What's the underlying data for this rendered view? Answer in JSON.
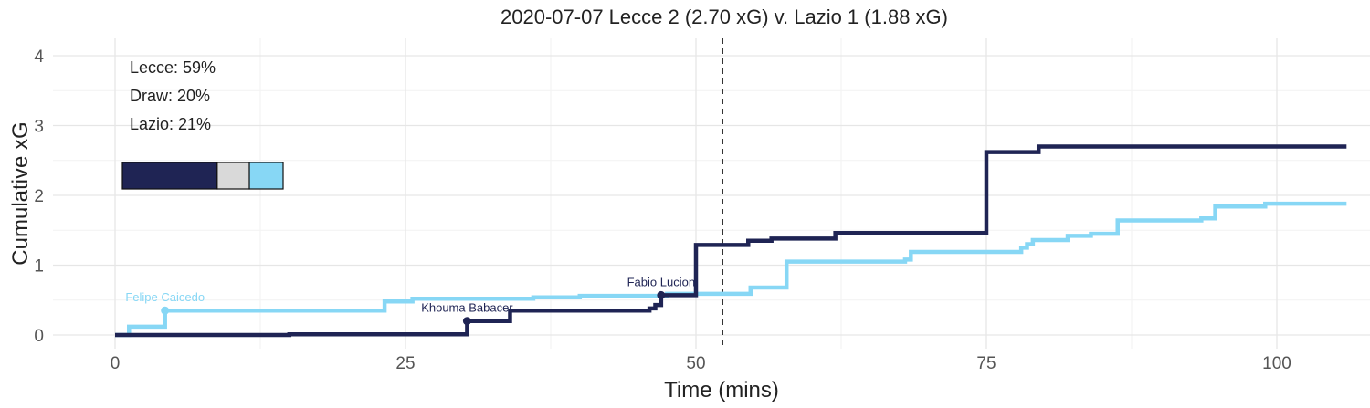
{
  "chart_data": {
    "type": "line",
    "title": "2020-07-07 Lecce 2 (2.70 xG) v. Lazio 1 (1.88 xG)",
    "xlabel": "Time (mins)",
    "ylabel": "Cumulative xG",
    "xlim": [
      -5,
      107
    ],
    "ylim": [
      -0.1,
      4.1
    ],
    "xticks": [
      0,
      25,
      50,
      75,
      100
    ],
    "yticks": [
      0,
      1,
      2,
      3,
      4
    ],
    "grid": true,
    "halftime_marker": 52.3,
    "series": [
      {
        "name": "Lecce",
        "color": "#1f2454",
        "x": [
          0,
          15,
          30.3,
          34,
          46,
          46.5,
          47,
          50,
          54.5,
          56.5,
          62,
          75,
          79.5,
          106
        ],
        "y": [
          0,
          0.01,
          0.2,
          0.35,
          0.38,
          0.43,
          0.57,
          1.29,
          1.35,
          1.38,
          1.46,
          2.62,
          2.7,
          2.7
        ]
      },
      {
        "name": "Lazio",
        "color": "#87d7f5",
        "x": [
          0,
          1.2,
          4.3,
          23.2,
          25.6,
          36,
          40,
          47.5,
          54.7,
          57.8,
          68,
          68.5,
          78,
          78.5,
          79,
          82,
          84,
          86.3,
          93.5,
          94.7,
          99,
          106
        ],
        "y": [
          0,
          0.12,
          0.35,
          0.48,
          0.52,
          0.54,
          0.56,
          0.59,
          0.68,
          1.05,
          1.08,
          1.19,
          1.25,
          1.3,
          1.36,
          1.42,
          1.45,
          1.64,
          1.67,
          1.84,
          1.88,
          1.88
        ]
      }
    ],
    "annotations": [
      {
        "label": "Felipe Caicedo",
        "x": 4.3,
        "y": 0.35,
        "team": "Lazio"
      },
      {
        "label": "Khouma Babacer",
        "x": 30.3,
        "y": 0.2,
        "team": "Lecce"
      },
      {
        "label": "Fabio Lucion",
        "x": 47,
        "y": 0.57,
        "team": "Lecce"
      }
    ],
    "probabilities": [
      {
        "label": "Lecce: 59%",
        "value": 59,
        "color": "#1f2454"
      },
      {
        "label": "Draw: 20%",
        "value": 20,
        "color": "#d9d9d9"
      },
      {
        "label": "Lazio: 21%",
        "value": 21,
        "color": "#87d7f5"
      }
    ]
  }
}
